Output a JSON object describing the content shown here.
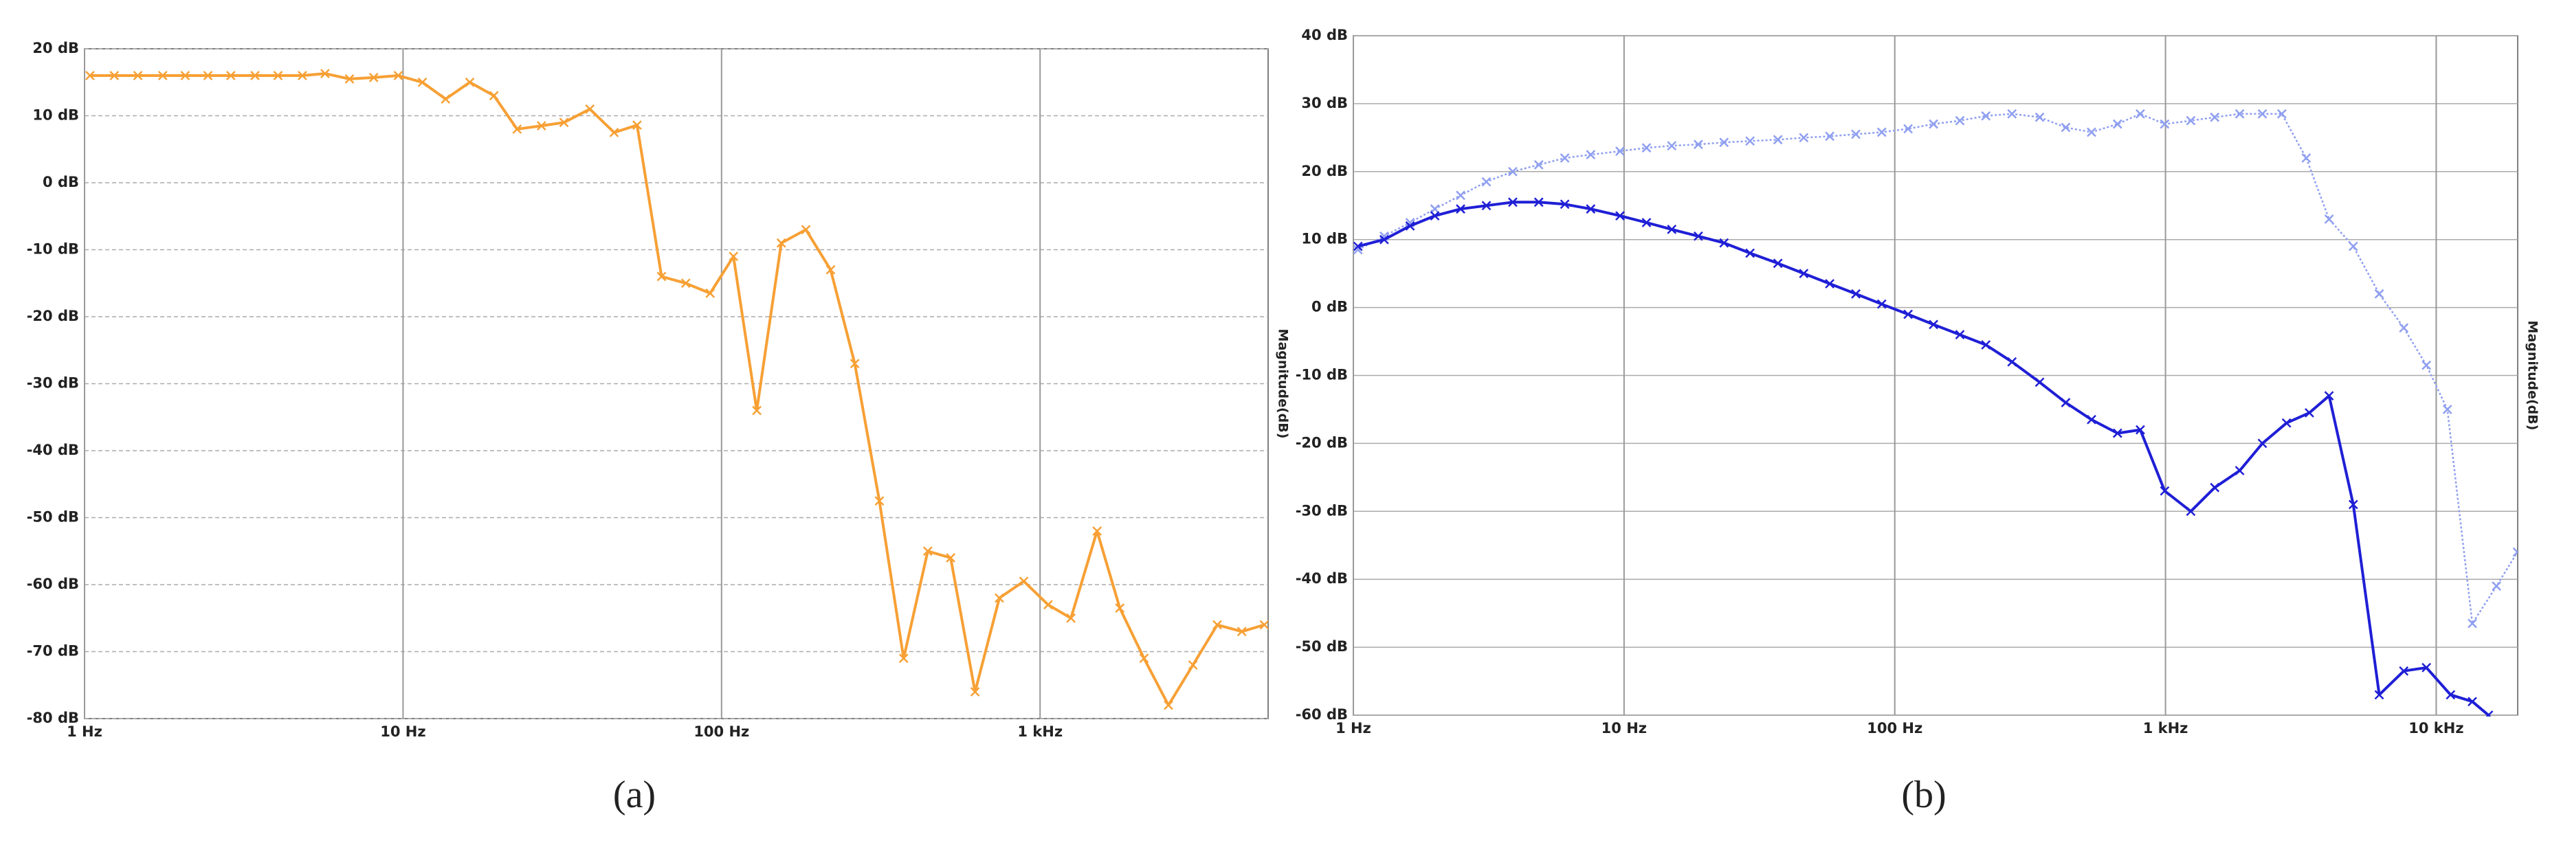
{
  "chart_data": [
    {
      "type": "line",
      "panel_label": "(a)",
      "y_label": "Magnitude(dB)",
      "xscale": "log",
      "grid": true,
      "grid_style": "dashed",
      "xlim": [
        1,
        5200
      ],
      "ylim": [
        -80,
        20
      ],
      "xticks": [
        {
          "value": 1,
          "label": "1 Hz"
        },
        {
          "value": 10,
          "label": "10 Hz"
        },
        {
          "value": 100,
          "label": "100 Hz"
        },
        {
          "value": 1000,
          "label": "1 kHz"
        }
      ],
      "yticks": [
        {
          "value": -80,
          "label": "-80 dB"
        },
        {
          "value": -70,
          "label": "-70 dB"
        },
        {
          "value": -60,
          "label": "-60 dB"
        },
        {
          "value": -50,
          "label": "-50 dB"
        },
        {
          "value": -40,
          "label": "-40 dB"
        },
        {
          "value": -30,
          "label": "-30 dB"
        },
        {
          "value": -20,
          "label": "-20 dB"
        },
        {
          "value": -10,
          "label": "-10 dB"
        },
        {
          "value": 0,
          "label": "0 dB"
        },
        {
          "value": 10,
          "label": "10 dB"
        },
        {
          "value": 20,
          "label": "20 dB"
        }
      ],
      "series": [
        {
          "color": "#f7a035",
          "line_style": "solid",
          "x": [
            1.04,
            1.24,
            1.47,
            1.76,
            2.07,
            2.44,
            2.88,
            3.43,
            4.05,
            4.83,
            5.69,
            6.79,
            8.09,
            9.66,
            11.5,
            13.6,
            16.2,
            19.3,
            22.8,
            27.2,
            32,
            38.6,
            46,
            54.3,
            64.8,
            77.2,
            92.1,
            109,
            129,
            154,
            184,
            220,
            262,
            313,
            373,
            444,
            524,
            625,
            745,
            889,
            1060,
            1250,
            1510,
            1780,
            2120,
            2530,
            3020,
            3600,
            4300,
            5060
          ],
          "values": [
            16,
            16,
            16,
            16,
            16,
            16,
            16,
            16,
            16,
            16,
            16.3,
            15.5,
            15.7,
            16,
            15,
            12.5,
            15,
            13,
            8,
            8.5,
            9,
            11,
            7.5,
            8.6,
            -14,
            -15,
            -16.5,
            -11,
            -34,
            -9,
            -7,
            -13,
            -27,
            -47.5,
            -71,
            -55,
            -56,
            -76,
            -62,
            -59.5,
            -63,
            -65,
            -52,
            -63.5,
            -71,
            -78,
            -72,
            -66,
            -67,
            -66
          ]
        }
      ]
    },
    {
      "type": "line",
      "panel_label": "(b)",
      "y_label": "Magnitude(dB)",
      "xscale": "log",
      "grid": true,
      "grid_style": "solid",
      "xlim": [
        1,
        20000
      ],
      "ylim": [
        -60,
        40
      ],
      "xticks": [
        {
          "value": 1,
          "label": "1 Hz"
        },
        {
          "value": 10,
          "label": "10 Hz"
        },
        {
          "value": 100,
          "label": "100 Hz"
        },
        {
          "value": 1000,
          "label": "1 kHz"
        },
        {
          "value": 10000,
          "label": "10 kHz"
        }
      ],
      "yticks": [
        {
          "value": -60,
          "label": "-60 dB"
        },
        {
          "value": -50,
          "label": "-50 dB"
        },
        {
          "value": -40,
          "label": "-40 dB"
        },
        {
          "value": -30,
          "label": "-30 dB"
        },
        {
          "value": -20,
          "label": "-20 dB"
        },
        {
          "value": -10,
          "label": "-10 dB"
        },
        {
          "value": 0,
          "label": "0 dB"
        },
        {
          "value": 10,
          "label": "10 dB"
        },
        {
          "value": 20,
          "label": "20 dB"
        },
        {
          "value": 30,
          "label": "30 dB"
        },
        {
          "value": 40,
          "label": "40 dB"
        }
      ],
      "series": [
        {
          "color": "#8f9ff0",
          "line_style": "dotted",
          "x": [
            1.04,
            1.3,
            1.62,
            2,
            2.49,
            3.1,
            3.88,
            4.84,
            6.04,
            7.53,
            9.66,
            12.1,
            15,
            18.8,
            23.4,
            29.2,
            37,
            46.1,
            57.5,
            71.8,
            89.5,
            112,
            139,
            174,
            217,
            271,
            343,
            428,
            533,
            665,
            807,
            993,
            1240,
            1520,
            1880,
            2280,
            2690,
            3310,
            4020,
            4940,
            6160,
            7590,
            9200,
            11000,
            13600,
            16700,
            19950
          ],
          "values": [
            8.5,
            10.5,
            12.5,
            14.5,
            16.5,
            18.5,
            20,
            21,
            22,
            22.5,
            23,
            23.5,
            23.8,
            24,
            24.3,
            24.5,
            24.7,
            25,
            25.2,
            25.5,
            25.8,
            26.3,
            27,
            27.5,
            28.2,
            28.5,
            28,
            26.5,
            25.8,
            27,
            28.5,
            27,
            27.5,
            28,
            28.5,
            28.5,
            28.5,
            22,
            13,
            9,
            2,
            -3,
            -8.5,
            -15,
            -46.5,
            -41,
            -36
          ]
        },
        {
          "color": "#1f1fd6",
          "line_style": "solid",
          "x": [
            1.04,
            1.3,
            1.62,
            2,
            2.49,
            3.1,
            3.88,
            4.84,
            6.04,
            7.53,
            9.66,
            12.1,
            15,
            18.8,
            23.4,
            29.2,
            37,
            46.1,
            57.5,
            71.8,
            89.5,
            112,
            139,
            174,
            217,
            271,
            343,
            428,
            533,
            665,
            807,
            993,
            1240,
            1520,
            1880,
            2280,
            2800,
            3400,
            4020,
            4940,
            6160,
            7590,
            9200,
            11300,
            13600,
            15600
          ],
          "values": [
            9,
            10,
            12,
            13.5,
            14.5,
            15,
            15.5,
            15.5,
            15.2,
            14.5,
            13.5,
            12.5,
            11.5,
            10.5,
            9.5,
            8,
            6.5,
            5,
            3.5,
            2,
            0.5,
            -1,
            -2.5,
            -4,
            -5.5,
            -8,
            -11,
            -14,
            -16.5,
            -18.5,
            -18,
            -27,
            -30,
            -26.5,
            -24,
            -20,
            -17,
            -15.5,
            -13,
            -29,
            -57,
            -53.5,
            -53,
            -57,
            -58,
            -60
          ]
        }
      ]
    }
  ]
}
